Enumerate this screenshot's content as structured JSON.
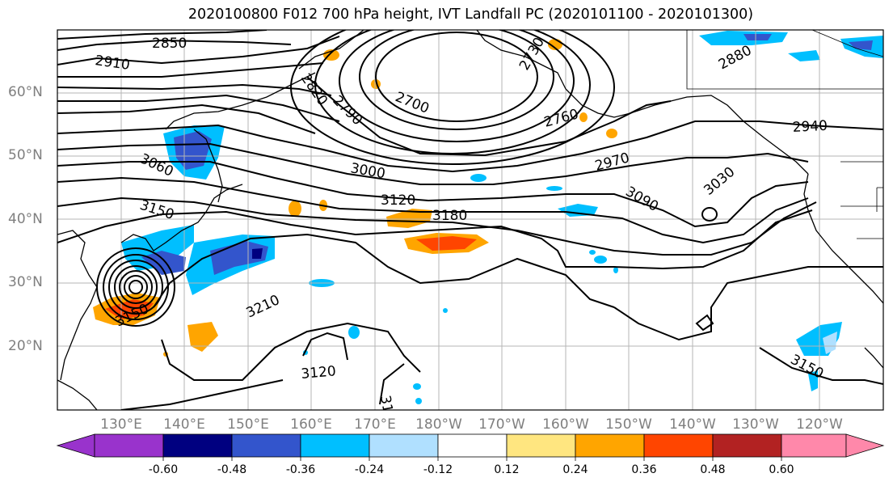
{
  "title": "2020100800 F012 700 hPa height, IVT Landfall PC (2020101100 - 2020101300)",
  "latitude_labels": [
    "60°N",
    "50°N",
    "40°N",
    "30°N",
    "20°N"
  ],
  "longitude_labels": [
    "130°E",
    "140°E",
    "150°E",
    "160°E",
    "170°E",
    "180°W",
    "170°W",
    "160°W",
    "150°W",
    "140°W",
    "130°W",
    "120°W"
  ],
  "contour_labels": [
    "2850",
    "2910",
    "2820",
    "2790",
    "2700",
    "2730",
    "2760",
    "2880",
    "2940",
    "3060",
    "3000",
    "2970",
    "3030",
    "3090",
    "3120",
    "3180",
    "3150",
    "3210",
    "3150",
    "3120",
    "31",
    "3150"
  ],
  "colorbar": {
    "tick_labels": [
      "-0.60",
      "-0.48",
      "-0.36",
      "-0.24",
      "-0.12",
      "0.12",
      "0.24",
      "0.36",
      "0.48",
      "0.60"
    ],
    "colors": [
      "#9933cc",
      "#000080",
      "#3355cc",
      "#00bfff",
      "#b0e0ff",
      "#ffffff",
      "#ffe680",
      "#ffa500",
      "#ff4500",
      "#b22222",
      "#ff88aa"
    ]
  }
}
